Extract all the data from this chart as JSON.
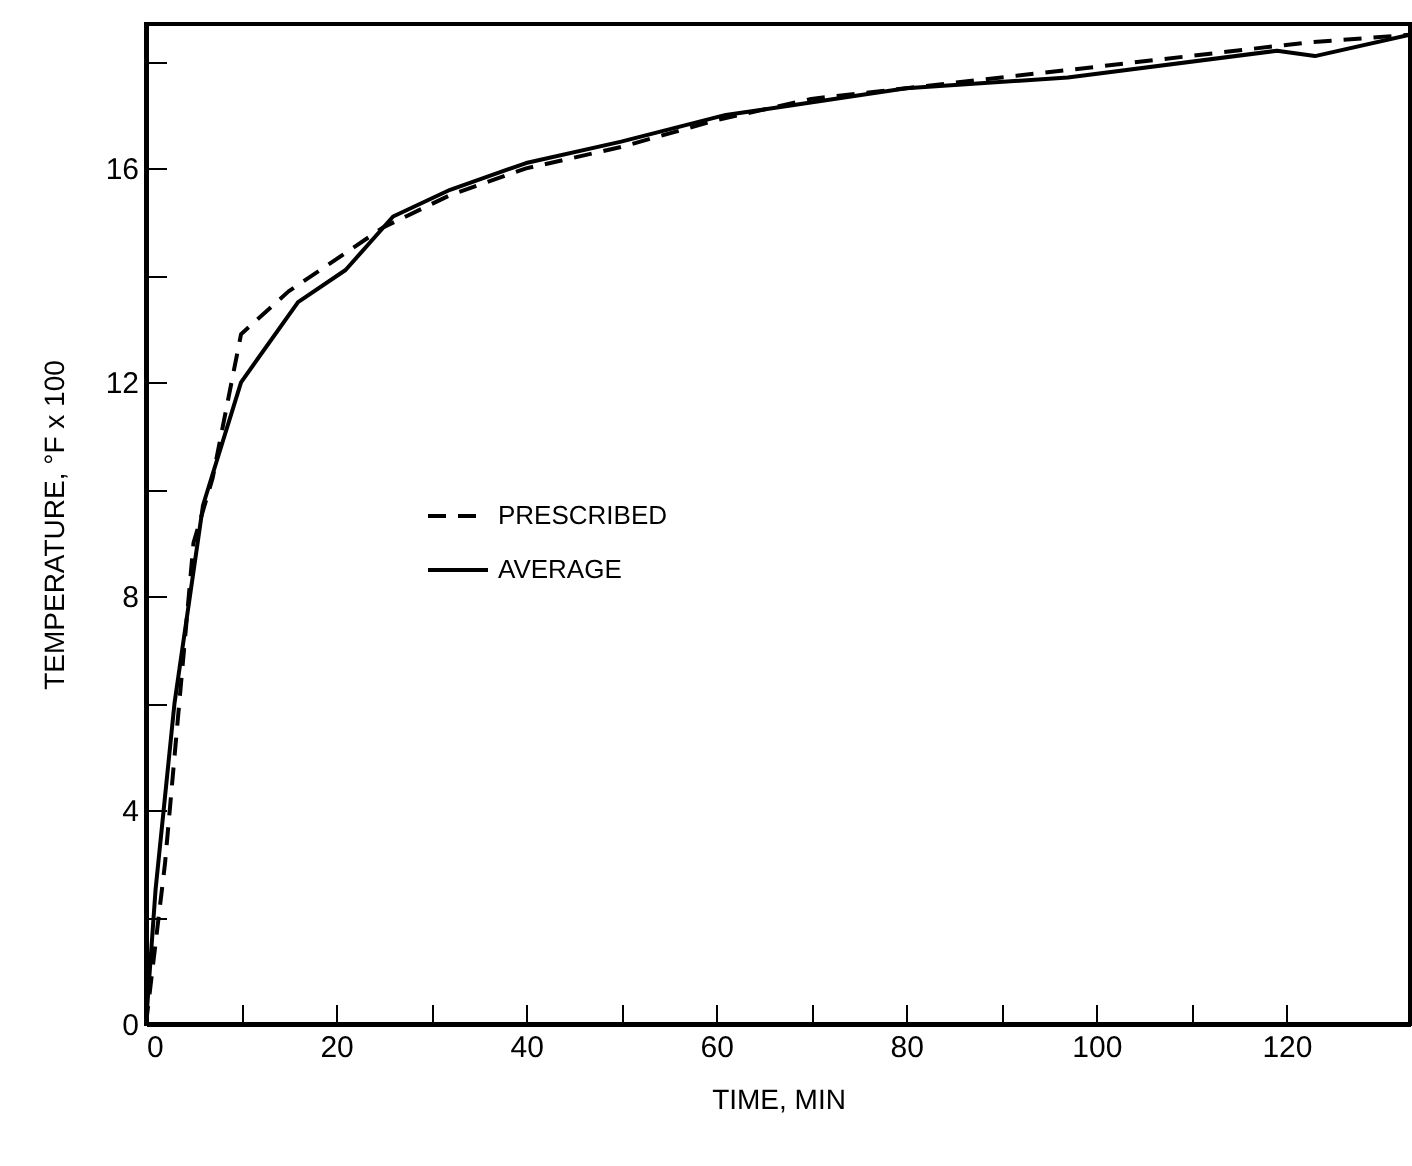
{
  "chart_data": {
    "type": "line",
    "xlabel": "TIME, MIN",
    "ylabel": "TEMPERATURE, °F x 100",
    "xlim": [
      0,
      133
    ],
    "xticks": [
      0,
      {
        "value": 10,
        "label": null
      },
      20,
      {
        "value": 30,
        "label": null
      },
      40,
      {
        "value": 50,
        "label": null
      },
      60,
      {
        "value": 70,
        "label": null
      },
      80,
      {
        "value": 90,
        "label": null
      },
      100,
      {
        "value": 110,
        "label": null
      },
      120
    ],
    "ylim": [
      0,
      18.7
    ],
    "yticks": [
      0,
      {
        "value": 2,
        "label": null
      },
      4,
      {
        "value": 6,
        "label": null
      },
      8,
      {
        "value": 10,
        "label": null
      },
      12,
      {
        "value": 14,
        "label": null
      },
      16,
      {
        "value": 18,
        "label": null
      }
    ],
    "legend": "left",
    "grid": false,
    "series": [
      {
        "name": "PRESCRIBED",
        "color": "#000000",
        "line_style": "dashed",
        "x": [
          0,
          2,
          5,
          7,
          10,
          15,
          20,
          25,
          32,
          40,
          50,
          60,
          70,
          80,
          100,
          122,
          133
        ],
        "values": [
          0,
          3,
          9,
          10.2,
          12.9,
          13.7,
          14.3,
          14.9,
          15.5,
          16.0,
          16.4,
          16.9,
          17.3,
          17.5,
          17.9,
          18.35,
          18.5
        ]
      },
      {
        "name": "AVERAGE",
        "color": "#000000",
        "line_style": "solid",
        "x": [
          0,
          1,
          3,
          6,
          10,
          16,
          21,
          26,
          32,
          40,
          50,
          61,
          65,
          80,
          97,
          119,
          123,
          133
        ],
        "values": [
          0,
          2.5,
          6,
          9.7,
          12,
          13.5,
          14.1,
          15.1,
          15.6,
          16.1,
          16.5,
          17.0,
          17.1,
          17.5,
          17.7,
          18.2,
          18.1,
          18.5
        ]
      }
    ]
  }
}
